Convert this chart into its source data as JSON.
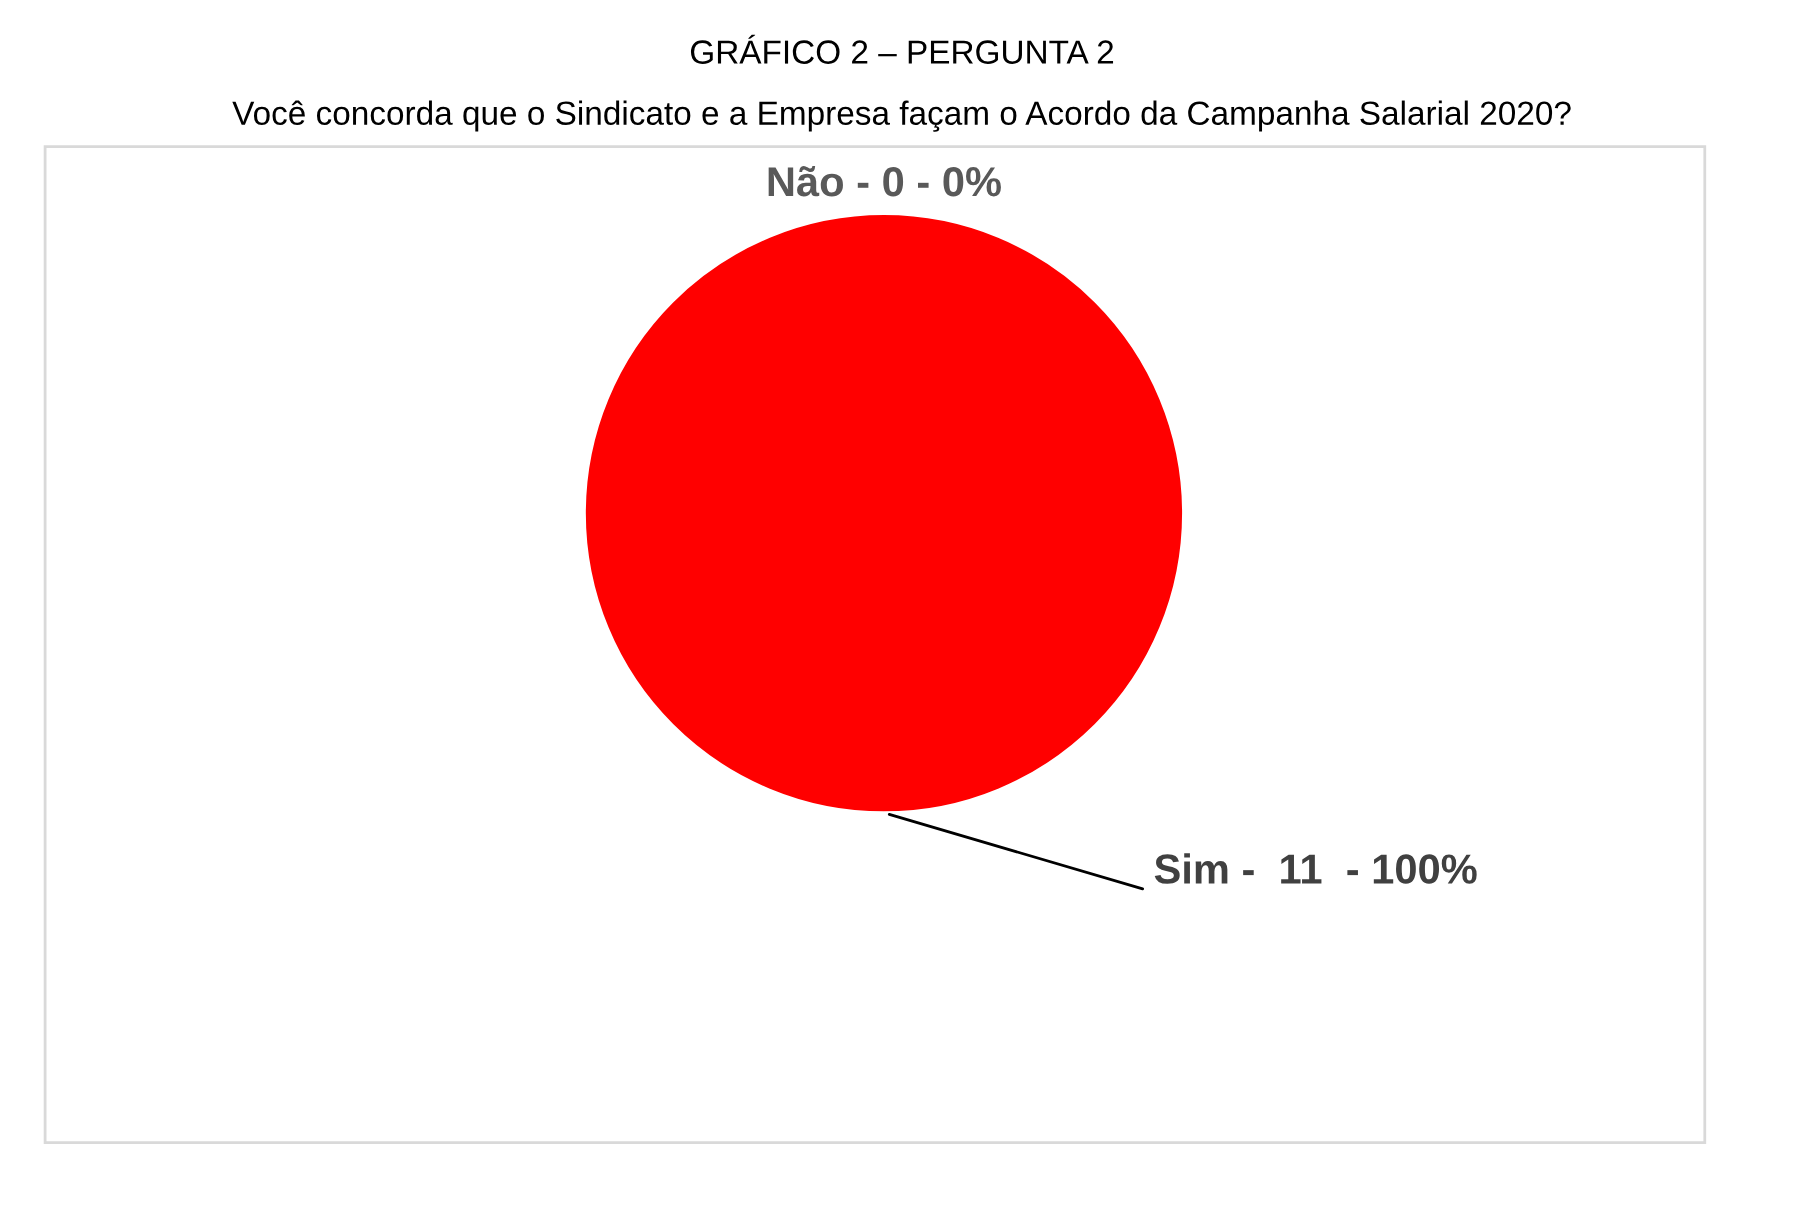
{
  "chart_data": {
    "type": "pie",
    "title": "GRÁFICO 2 – PERGUNTA 2",
    "subtitle": "Você concorda que o Sindicato e a Empresa façam o Acordo da Campanha Salarial 2020?",
    "categories": [
      "Não - 0 - 0%",
      "Sim -  11  - 100%"
    ],
    "values": [
      0,
      100
    ],
    "colors": [
      "#c00000",
      "#ff0000"
    ]
  }
}
